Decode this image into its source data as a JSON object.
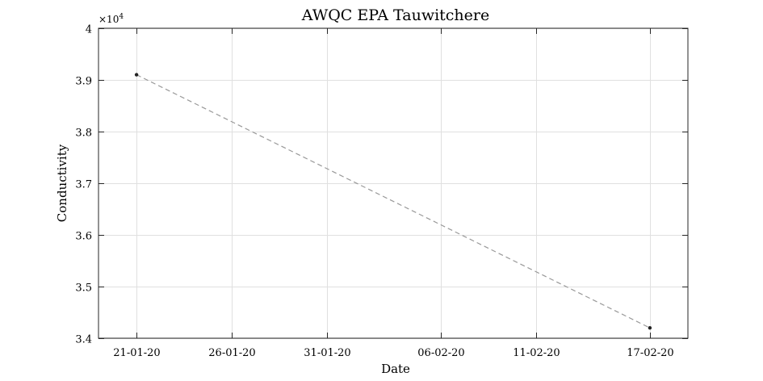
{
  "chart_data": {
    "type": "line",
    "title": "AWQC EPA Tauwitchere",
    "xlabel": "Date",
    "ylabel": "Conductivity",
    "y_exponent": "4",
    "y_multiplier_prefix": "×10",
    "xlim": [
      "2020-01-19",
      "2020-02-19"
    ],
    "ylim": [
      34000,
      40000
    ],
    "x_ticks": [
      {
        "date": "2020-01-21",
        "label": "21-01-20"
      },
      {
        "date": "2020-01-26",
        "label": "26-01-20"
      },
      {
        "date": "2020-01-31",
        "label": "31-01-20"
      },
      {
        "date": "2020-02-06",
        "label": "06-02-20"
      },
      {
        "date": "2020-02-11",
        "label": "11-02-20"
      },
      {
        "date": "2020-02-17",
        "label": "17-02-20"
      }
    ],
    "y_ticks": [
      {
        "value": 34000,
        "label": "3.4"
      },
      {
        "value": 35000,
        "label": "3.5"
      },
      {
        "value": 36000,
        "label": "3.6"
      },
      {
        "value": 37000,
        "label": "3.7"
      },
      {
        "value": 38000,
        "label": "3.8"
      },
      {
        "value": 39000,
        "label": "3.9"
      },
      {
        "value": 40000,
        "label": "4"
      }
    ],
    "series": [
      {
        "points": [
          {
            "x": "2020-01-21",
            "y": 39100
          },
          {
            "x": "2020-02-17",
            "y": 34200
          }
        ],
        "line_style": "dashed",
        "line_color": "#999999",
        "marker_color": "#222222"
      }
    ],
    "grid": true,
    "colors": {
      "grid": "#e0e0e0",
      "axis": "#262626"
    }
  }
}
